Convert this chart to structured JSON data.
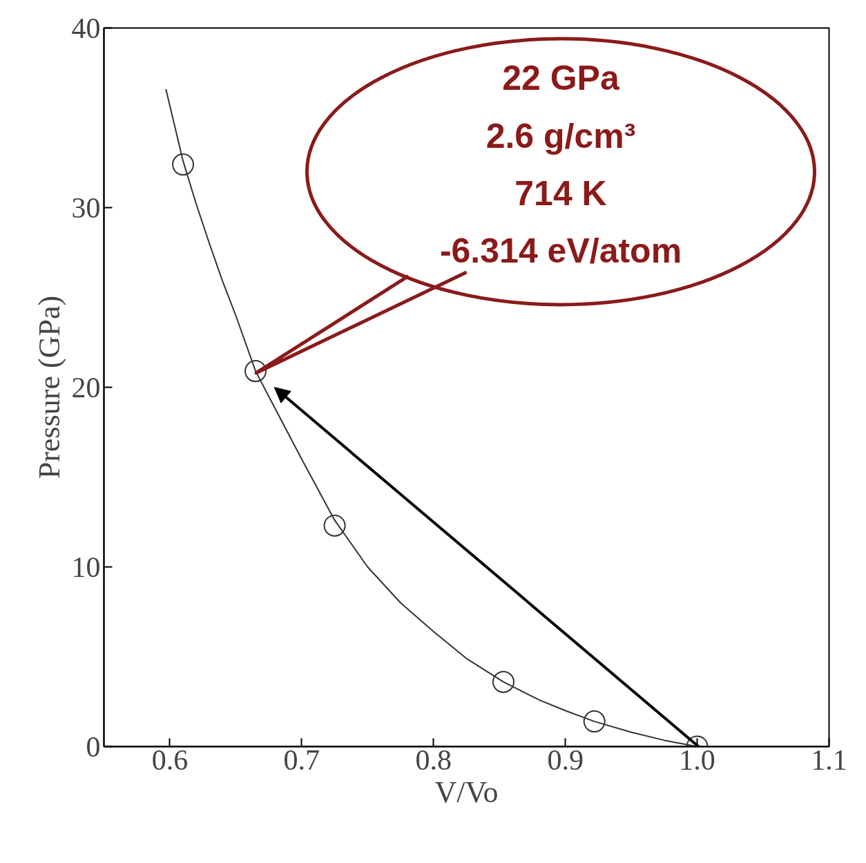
{
  "chart_data": {
    "type": "scatter",
    "xlabel": "V/Vo",
    "ylabel": "Pressure (GPa)",
    "xlim": [
      0.55,
      1.1
    ],
    "ylim": [
      0,
      40
    ],
    "xticks": [
      0.6,
      0.7,
      0.8,
      0.9,
      {
        "value": 1.0,
        "label": "1.0"
      },
      1.1
    ],
    "yticks": [
      0,
      10,
      20,
      30,
      40
    ],
    "grid": false,
    "marker": "circle",
    "series": [
      {
        "color": "#333333",
        "x": [
          0.61,
          0.665,
          0.725,
          0.853,
          0.922,
          1.0
        ],
        "values": [
          32.4,
          20.9,
          12.3,
          3.6,
          1.4,
          0
        ]
      },
      {
        "type": "line",
        "color": "#333333",
        "marker": "none",
        "x": [
          0.597,
          0.61,
          0.62,
          0.63,
          0.64,
          0.65,
          0.665,
          0.68,
          0.7,
          0.725,
          0.75,
          0.775,
          0.8,
          0.825,
          0.853,
          0.88,
          0.9,
          0.922,
          0.95,
          0.975,
          1.0
        ],
        "values": [
          36.6,
          32.6,
          30.2,
          28.0,
          25.9,
          24.0,
          20.9,
          18.8,
          16.0,
          12.6,
          10.0,
          8.0,
          6.4,
          4.9,
          3.6,
          2.6,
          2.0,
          1.4,
          0.8,
          0.35,
          0
        ]
      }
    ],
    "annotations": [
      "22 GPa",
      "2.6 g/cm³",
      "714 K",
      "-6.314 eV/atom"
    ]
  }
}
